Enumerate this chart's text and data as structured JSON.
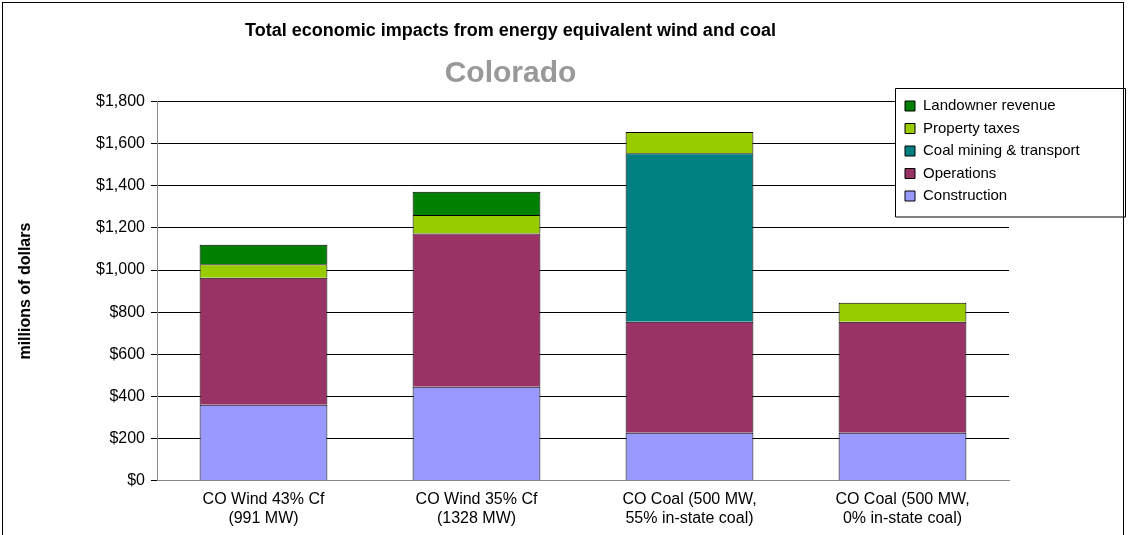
{
  "chart_data": {
    "type": "bar",
    "stacked": true,
    "title": "Total economic impacts from energy equivalent wind and coal",
    "subtitle": "Colorado",
    "ylabel": "millions of dollars",
    "categories": [
      "CO Wind 43% Cf\n(991 MW)",
      "CO Wind 35% Cf\n(1328 MW)",
      "CO Coal (500 MW,\n55% in-state coal)",
      "CO Coal (500 MW,\n0% in-state coal)"
    ],
    "series": [
      {
        "name": "Construction",
        "color": "#9999ff",
        "values": [
          360,
          446,
          227,
          227
        ]
      },
      {
        "name": "Operations",
        "color": "#993366",
        "values": [
          603,
          727,
          527,
          527
        ]
      },
      {
        "name": "Coal mining & transport",
        "color": "#008080",
        "values": [
          null,
          null,
          801,
          null
        ]
      },
      {
        "name": "Property taxes",
        "color": "#99cc00",
        "values": [
          64,
          89,
          101,
          91
        ]
      },
      {
        "name": "Landowner revenue",
        "color": "#008000",
        "values": [
          93,
          110,
          null,
          null
        ]
      }
    ],
    "ylim": [
      0,
      1800
    ],
    "yticks": [
      {
        "value": 0,
        "label": "$0"
      },
      {
        "value": 200,
        "label": "$200"
      },
      {
        "value": 400,
        "label": "$400"
      },
      {
        "value": 600,
        "label": "$600"
      },
      {
        "value": 800,
        "label": "$800"
      },
      {
        "value": 1000,
        "label": "$1,000"
      },
      {
        "value": 1200,
        "label": "$1,200"
      },
      {
        "value": 1400,
        "label": "$1,400"
      },
      {
        "value": 1600,
        "label": "$1,600"
      },
      {
        "value": 1800,
        "label": "$1,800"
      }
    ],
    "grid": "y",
    "legend": "top right"
  }
}
